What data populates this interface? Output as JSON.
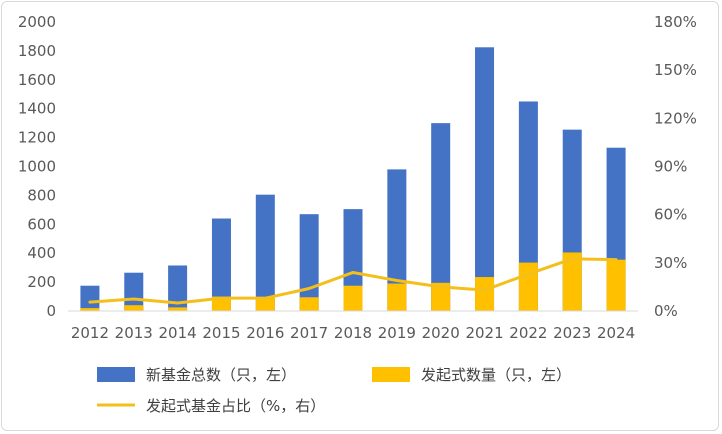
{
  "chart_data": {
    "type": "bar",
    "categories": [
      "2012",
      "2013",
      "2014",
      "2015",
      "2016",
      "2017",
      "2018",
      "2019",
      "2020",
      "2021",
      "2022",
      "2023",
      "2024"
    ],
    "series": [
      {
        "name": "新基金总数（只，左）",
        "kind": "bar",
        "axis": "left",
        "color": "#4472C4",
        "values": [
          175,
          265,
          315,
          640,
          805,
          670,
          705,
          980,
          1300,
          1825,
          1450,
          1255,
          1130
        ]
      },
      {
        "name": "发起式数量（只，左）",
        "kind": "bar",
        "axis": "left",
        "color": "#FFC000",
        "values": [
          20,
          40,
          25,
          100,
          95,
          95,
          175,
          190,
          195,
          235,
          335,
          405,
          355
        ]
      },
      {
        "name": "发起式基金占比（%，右）",
        "kind": "line",
        "axis": "right",
        "color": "#F4BF1A",
        "values": [
          5.5,
          7.5,
          5,
          8,
          8,
          14,
          24,
          19,
          15,
          13,
          23,
          32.5,
          32
        ]
      }
    ],
    "y_left": {
      "min": 0,
      "max": 2000,
      "step": 200,
      "tick_labels": [
        "0",
        "200",
        "400",
        "600",
        "800",
        "1000",
        "1200",
        "1400",
        "1600",
        "1800",
        "2000"
      ]
    },
    "y_right": {
      "min": 0,
      "max": 180,
      "step": 30,
      "tick_labels": [
        "0%",
        "30%",
        "60%",
        "90%",
        "120%",
        "150%",
        "180%"
      ]
    },
    "legend": {
      "placement": "bottom",
      "items": [
        "新基金总数（只，左）",
        "发起式数量（只，左）",
        "发起式基金占比（%，右）"
      ]
    },
    "title": "",
    "xlabel": "",
    "ylabel": "",
    "grid": false
  }
}
